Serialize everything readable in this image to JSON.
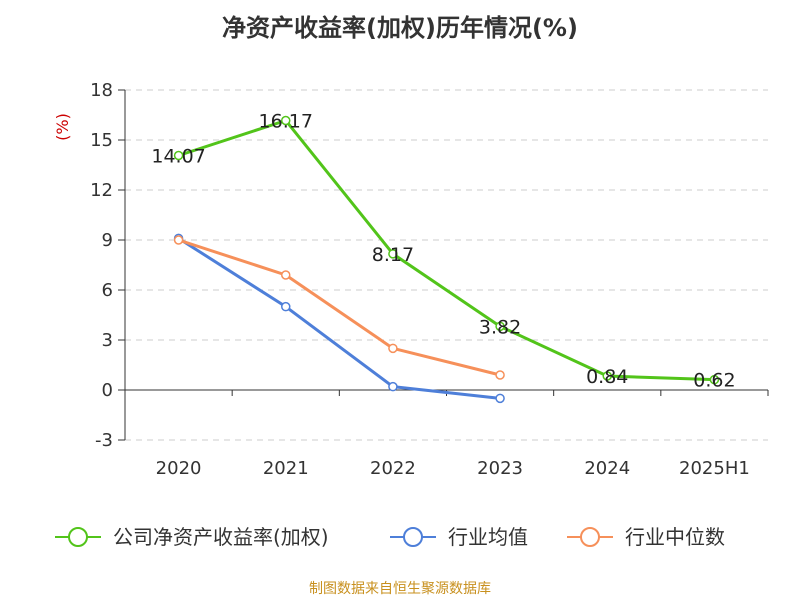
{
  "chart_data": {
    "type": "line",
    "title": "净资产收益率(加权)历年情况(%)",
    "ylabel": "(%)",
    "categories": [
      "2020",
      "2021",
      "2022",
      "2023",
      "2024",
      "2025H1"
    ],
    "ylim": [
      -3,
      18
    ],
    "yticks": [
      "18",
      "15",
      "12",
      "9",
      "6",
      "3",
      "0",
      "-3"
    ],
    "grid": true,
    "legend_position": "bottom",
    "series": [
      {
        "name": "公司净资产收益率(加权)",
        "color": "#52c41a",
        "values": [
          14.07,
          16.17,
          8.17,
          3.82,
          0.84,
          0.62
        ],
        "labels": [
          "14.07",
          "16.17",
          "8.17",
          "3.82",
          "0.84",
          "0.62"
        ]
      },
      {
        "name": "行业均值",
        "color": "#4e7fd9",
        "values": [
          9.1,
          5.0,
          0.2,
          -0.5,
          null,
          null
        ]
      },
      {
        "name": "行业中位数",
        "color": "#f6905a",
        "values": [
          9.0,
          6.9,
          2.5,
          0.9,
          null,
          null
        ]
      }
    ]
  },
  "source": "制图数据来自恒生聚源数据库",
  "colors": {
    "ylabel": "#cc0000",
    "source": "#c8901e",
    "grid": "#cccccc",
    "axis": "#333333"
  }
}
